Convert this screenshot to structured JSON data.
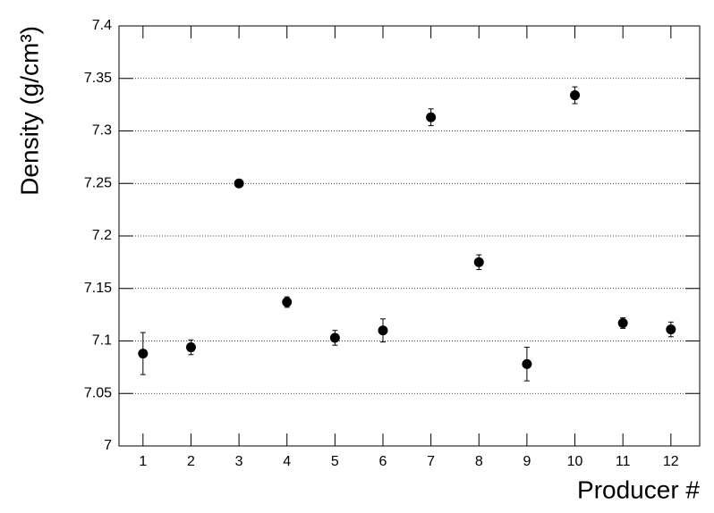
{
  "chart_data": {
    "type": "scatter",
    "x_label": "Producer #",
    "y_label": "Density (g/cm³)",
    "x": [
      1,
      2,
      3,
      4,
      5,
      6,
      7,
      8,
      9,
      10,
      11,
      12
    ],
    "values": [
      7.088,
      7.094,
      7.25,
      7.137,
      7.103,
      7.11,
      7.313,
      7.175,
      7.078,
      7.334,
      7.117,
      7.111
    ],
    "errors": [
      0.02,
      0.007,
      0.002,
      0.005,
      0.007,
      0.011,
      0.008,
      0.007,
      0.016,
      0.008,
      0.005,
      0.007
    ],
    "color": "#000000",
    "xlim": [
      0.5,
      12.6
    ],
    "xticks": [
      1,
      2,
      3,
      4,
      5,
      6,
      7,
      8,
      9,
      10,
      11,
      12
    ],
    "ylim": [
      7,
      7.4
    ],
    "yticks": [
      7,
      7.05,
      7.1,
      7.15,
      7.2,
      7.25,
      7.3,
      7.35,
      7.4
    ],
    "grid": true
  }
}
